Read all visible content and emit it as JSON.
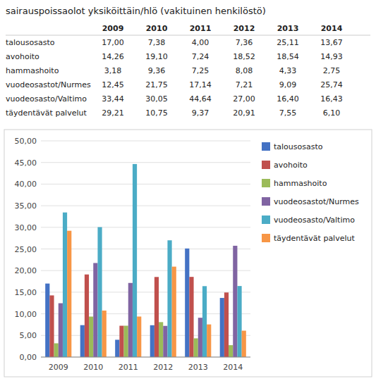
{
  "chart_data": {
    "type": "bar",
    "title": "sairauspoissaolot yksiköittäin/hlö (vakituinen henkilöstö)",
    "categories": [
      "2009",
      "2010",
      "2011",
      "2012",
      "2013",
      "2014"
    ],
    "series": [
      {
        "name": "talousosasto",
        "color": "#4472c4",
        "values": [
          17.0,
          7.38,
          4.0,
          7.36,
          25.11,
          13.67
        ],
        "value_labels": [
          "17,00",
          "7,38",
          "4,00",
          "7,36",
          "25,11",
          "13,67"
        ]
      },
      {
        "name": "avohoito",
        "color": "#c0504d",
        "values": [
          14.26,
          19.1,
          7.24,
          18.52,
          18.54,
          14.93
        ],
        "value_labels": [
          "14,26",
          "19,10",
          "7,24",
          "18,52",
          "18,54",
          "14,93"
        ]
      },
      {
        "name": "hammashoito",
        "color": "#9bbb59",
        "values": [
          3.18,
          9.36,
          7.25,
          8.08,
          4.33,
          2.75
        ],
        "value_labels": [
          "3,18",
          "9,36",
          "7,25",
          "8,08",
          "4,33",
          "2,75"
        ]
      },
      {
        "name": "vuodeosastot/Nurmes",
        "color": "#8064a2",
        "values": [
          12.45,
          21.75,
          17.14,
          7.21,
          9.09,
          25.74
        ],
        "value_labels": [
          "12,45",
          "21,75",
          "17,14",
          "7,21",
          "9,09",
          "25,74"
        ]
      },
      {
        "name": "vuodeosasto/Valtimo",
        "color": "#4bacc6",
        "values": [
          33.44,
          30.05,
          44.64,
          27.0,
          16.4,
          16.43
        ],
        "value_labels": [
          "33,44",
          "30,05",
          "44,64",
          "27,00",
          "16,40",
          "16,43"
        ]
      },
      {
        "name": "täydentävät palvelut",
        "color": "#f79646",
        "values": [
          29.21,
          10.75,
          9.37,
          20.91,
          7.55,
          6.1
        ],
        "value_labels": [
          "29,21",
          "10,75",
          "9,37",
          "20,91",
          "7,55",
          "6,10"
        ]
      }
    ],
    "ylim": [
      0,
      50
    ],
    "yticks": [
      {
        "value": 0,
        "label": "0,00"
      },
      {
        "value": 5,
        "label": "5,00"
      },
      {
        "value": 10,
        "label": "10,00"
      },
      {
        "value": 15,
        "label": "15,00"
      },
      {
        "value": 20,
        "label": "20,00"
      },
      {
        "value": 25,
        "label": "25,00"
      },
      {
        "value": 30,
        "label": "30,00"
      },
      {
        "value": 35,
        "label": "35,00"
      },
      {
        "value": 40,
        "label": "40,00"
      },
      {
        "value": 45,
        "label": "45,00"
      },
      {
        "value": 50,
        "label": "50,00"
      }
    ],
    "grid": true,
    "legend": "right"
  }
}
